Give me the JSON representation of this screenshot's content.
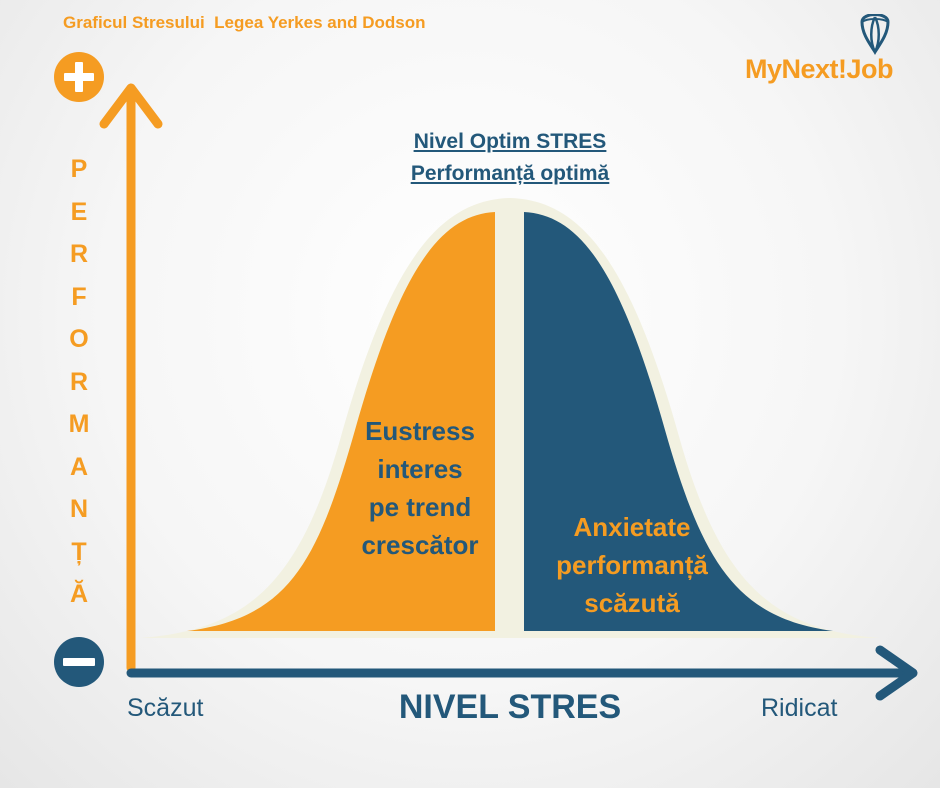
{
  "header": {
    "title": "Graficul Stresului  Legea Yerkes and Dodson"
  },
  "logo": {
    "part1": "MyNext",
    "part2": "!",
    "part3": "Job",
    "icon": "hot-air-balloon-icon"
  },
  "y_axis": {
    "letters": [
      "P",
      "E",
      "R",
      "F",
      "O",
      "R",
      "M",
      "A",
      "N",
      "Ț",
      "Ă"
    ],
    "top_icon": "plus-icon",
    "bottom_icon": "minus-icon"
  },
  "x_axis": {
    "low": "Scăzut",
    "title": "NIVEL STRES",
    "high": "Ridicat"
  },
  "peak": {
    "line1": "Nivel Optim STRES",
    "line2": "Performanță optimă"
  },
  "left_region": {
    "lines": [
      "Eustress",
      "interes",
      "pe trend",
      "crescător"
    ]
  },
  "right_region": {
    "lines": [
      "Anxietate",
      "performanță",
      "scăzută"
    ]
  },
  "colors": {
    "orange": "#f59c22",
    "blue": "#23587a",
    "halo": "#f2f1e1"
  }
}
